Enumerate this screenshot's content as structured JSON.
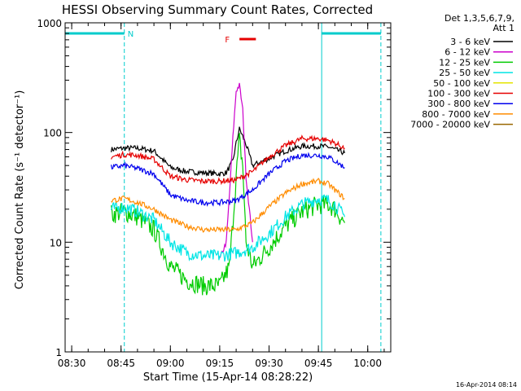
{
  "chart_data": {
    "type": "line",
    "title": "HESSI Observing Summary Count Rates, Corrected",
    "xlabel": "Start Time (15-Apr-14 08:28:22)",
    "ylabel": "Corrected Count Rate (s⁻¹ detector⁻¹)",
    "yscale": "log",
    "ylim": [
      1,
      1000
    ],
    "xlim": [
      "08:28",
      "10:07"
    ],
    "x_ticks": [
      "08:30",
      "08:45",
      "09:00",
      "09:15",
      "09:30",
      "09:45",
      "10:00"
    ],
    "y_ticks": [
      "1",
      "10",
      "100",
      "1000"
    ],
    "grid": false,
    "legend_header": [
      "Det 1,3,5,6,7,9,",
      "Att 1"
    ],
    "legend_position": "right",
    "footer_stamp": "16-Apr-2014 08:14",
    "series": [
      {
        "name": "3 - 6 keV",
        "color": "#000000",
        "x": [
          "08:42",
          "08:46",
          "08:50",
          "08:55",
          "09:00",
          "09:05",
          "09:10",
          "09:15",
          "09:17",
          "09:19",
          "09:20",
          "09:21",
          "09:23",
          "09:25",
          "09:30",
          "09:35",
          "09:40",
          "09:45",
          "09:48",
          "09:50",
          "09:53"
        ],
        "y": [
          70,
          72,
          72,
          68,
          48,
          44,
          43,
          42,
          43,
          55,
          80,
          108,
          78,
          50,
          58,
          68,
          75,
          75,
          74,
          70,
          65
        ]
      },
      {
        "name": "6 - 12 keV",
        "color": "#cc00cc",
        "x": [
          "09:15",
          "09:17",
          "09:18",
          "09:19",
          "09:20",
          "09:21",
          "09:22",
          "09:23",
          "09:25"
        ],
        "y": [
          7,
          10,
          28,
          90,
          240,
          270,
          160,
          40,
          10
        ]
      },
      {
        "name": "12 - 25 keV",
        "color": "#00cc00",
        "x": [
          "08:42",
          "08:46",
          "08:50",
          "08:55",
          "09:00",
          "09:05",
          "09:10",
          "09:15",
          "09:18",
          "09:20",
          "09:21",
          "09:22",
          "09:23",
          "09:25",
          "09:30",
          "09:35",
          "09:40",
          "09:45",
          "09:48",
          "09:50",
          "09:53"
        ],
        "y": [
          18,
          19,
          17,
          13,
          6,
          4.5,
          4,
          4,
          6,
          40,
          85,
          50,
          10,
          6,
          9,
          14,
          19,
          22,
          22,
          20,
          15
        ]
      },
      {
        "name": "25 - 50 keV",
        "color": "#00e5e5",
        "x": [
          "08:42",
          "08:46",
          "08:50",
          "08:55",
          "09:00",
          "09:05",
          "09:10",
          "09:15",
          "09:20",
          "09:25",
          "09:30",
          "09:35",
          "09:40",
          "09:45",
          "09:48",
          "09:50",
          "09:53"
        ],
        "y": [
          20,
          21,
          19,
          16,
          10,
          8,
          7.5,
          7.5,
          8,
          9,
          12,
          17,
          22,
          25,
          24,
          22,
          17
        ]
      },
      {
        "name": "50 - 100 keV",
        "color": "#e5e500",
        "x": [],
        "y": []
      },
      {
        "name": "100 - 300 keV",
        "color": "#e60000",
        "x": [
          "08:42",
          "08:46",
          "08:50",
          "08:55",
          "09:00",
          "09:05",
          "09:10",
          "09:15",
          "09:20",
          "09:25",
          "09:30",
          "09:35",
          "09:40",
          "09:45",
          "09:48",
          "09:50",
          "09:53"
        ],
        "y": [
          60,
          63,
          62,
          57,
          40,
          37,
          36,
          36,
          37,
          44,
          60,
          76,
          88,
          88,
          85,
          80,
          72
        ]
      },
      {
        "name": "300 - 800 keV",
        "color": "#0000ee",
        "x": [
          "08:42",
          "08:46",
          "08:50",
          "08:55",
          "09:00",
          "09:05",
          "09:10",
          "09:15",
          "09:20",
          "09:25",
          "09:30",
          "09:35",
          "09:40",
          "09:45",
          "09:48",
          "09:50",
          "09:53"
        ],
        "y": [
          48,
          50,
          47,
          42,
          27,
          24,
          23,
          23,
          24,
          30,
          42,
          55,
          62,
          62,
          60,
          55,
          48
        ]
      },
      {
        "name": "800 - 7000 keV",
        "color": "#ff8c00",
        "x": [
          "08:42",
          "08:46",
          "08:50",
          "08:55",
          "09:00",
          "09:05",
          "09:10",
          "09:15",
          "09:20",
          "09:25",
          "09:30",
          "09:35",
          "09:40",
          "09:45",
          "09:48",
          "09:50",
          "09:53"
        ],
        "y": [
          24,
          25,
          23,
          20,
          16,
          14,
          13,
          13,
          13,
          15,
          21,
          28,
          34,
          36,
          34,
          30,
          25
        ]
      },
      {
        "name": "7000 - 20000 keV",
        "color": "#996600",
        "x": [],
        "y": []
      }
    ],
    "flags": [
      {
        "label": "N",
        "color": "#00cccc",
        "ranges": [
          [
            "08:28",
            "08:46"
          ],
          [
            "09:46",
            "10:04"
          ]
        ]
      },
      {
        "label": "F",
        "color": "#e60000",
        "ranges": [
          [
            "09:21",
            "09:26"
          ]
        ]
      }
    ],
    "vertical_markers": [
      {
        "time": "08:28",
        "color": "#00cccc",
        "style": "solid"
      },
      {
        "time": "08:46",
        "color": "#00cccc",
        "style": "dashed"
      },
      {
        "time": "09:46",
        "color": "#00cccc",
        "style": "solid"
      },
      {
        "time": "10:04",
        "color": "#00cccc",
        "style": "dashed"
      }
    ]
  }
}
